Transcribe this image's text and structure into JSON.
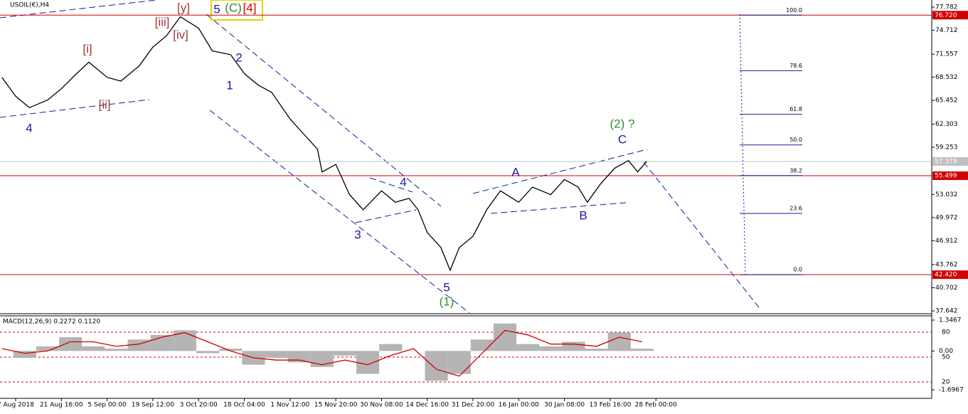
{
  "chart_data": [
    {
      "type": "line",
      "title": "USOIL(€),H4",
      "categories": [
        "7 Aug 2018",
        "21 Aug 16:00",
        "5 Sep 00:00",
        "19 Sep 12:00",
        "3 Oct 20:00",
        "18 Oct 04:00",
        "1 Nov 12:00",
        "15 Nov 20:00",
        "30 Nov 08:00",
        "14 Dec 16:00",
        "31 Dec 20:00",
        "16 Jan 00:00",
        "30 Jan 08:00",
        "13 Feb 16:00",
        "28 Feb 00:00"
      ],
      "series": [
        {
          "name": "USOIL",
          "color": "#000000",
          "x": [
            -0.3,
            0,
            0.3,
            0.7,
            1,
            1.3,
            1.6,
            2,
            2.3,
            2.7,
            3,
            3.3,
            3.6,
            4,
            4.3,
            4.7,
            5,
            5.3,
            5.6,
            6,
            6.3,
            6.6,
            6.7,
            7,
            7.3,
            7.6,
            8,
            8.3,
            8.6,
            8.8,
            9,
            9.3,
            9.5,
            9.7,
            10,
            10.3,
            10.6,
            11,
            11.3,
            11.7,
            12,
            12.3,
            12.5,
            12.8,
            13.1,
            13.4,
            13.6,
            13.8
          ],
          "values": [
            68.5,
            66,
            64.5,
            65.5,
            67,
            68.8,
            70.5,
            68.5,
            68,
            70,
            72.5,
            74,
            76.5,
            75,
            72,
            71.5,
            69,
            67.5,
            66.5,
            63,
            61,
            59,
            56,
            57,
            53,
            51,
            53.5,
            52,
            52.5,
            51,
            48,
            46,
            43,
            46,
            47.5,
            51,
            53.5,
            52,
            54,
            53,
            55,
            54,
            52,
            54.5,
            56.5,
            57.5,
            56,
            57.4
          ]
        }
      ],
      "ylim": [
        37.36,
        78.72
      ],
      "yticks": [
        77.782,
        74.712,
        71.557,
        68.532,
        65.452,
        62.303,
        59.253,
        53.032,
        49.972,
        46.912,
        43.762,
        40.702,
        37.642
      ],
      "levels": [
        {
          "value": 76.72,
          "label": "76.720",
          "color": "#d00000"
        },
        {
          "value": 57.379,
          "label": "57.379",
          "color": "#c0c0c0"
        },
        {
          "value": 55.499,
          "label": "55.499",
          "color": "#d00000"
        },
        {
          "value": 42.42,
          "label": "42.420",
          "color": "#d00000"
        }
      ],
      "fib_levels": [
        {
          "value": 100,
          "label": "100.0"
        },
        {
          "value": 78.6,
          "label": "78.6"
        },
        {
          "value": 61.8,
          "label": "61.8"
        },
        {
          "value": 50,
          "label": "50.0"
        },
        {
          "value": 38.2,
          "label": "38.2"
        },
        {
          "value": 23.6,
          "label": "23.6"
        },
        {
          "value": 0,
          "label": "0.0"
        }
      ],
      "annotations": [
        {
          "text": "[y]",
          "color": "#9b3a3a"
        },
        {
          "text": "5",
          "color": "#1a1a9c"
        },
        {
          "text": "(C)",
          "color": "#2e8b2e"
        },
        {
          "text": "[4]",
          "color": "#d00000"
        },
        {
          "text": "[iii]",
          "color": "#9b3a3a"
        },
        {
          "text": "[iv]",
          "color": "#9b3a3a"
        },
        {
          "text": "[i]",
          "color": "#9b3a3a"
        },
        {
          "text": "[ii]",
          "color": "#9b3a3a"
        },
        {
          "text": "4",
          "color": "#1a1a9c"
        },
        {
          "text": "1",
          "color": "#1a1a9c"
        },
        {
          "text": "2",
          "color": "#1a1a9c"
        },
        {
          "text": "3",
          "color": "#1a1a9c"
        },
        {
          "text": "4",
          "color": "#1a1a9c"
        },
        {
          "text": "5",
          "color": "#1a1a9c"
        },
        {
          "text": "(1)",
          "color": "#2e8b2e"
        },
        {
          "text": "A",
          "color": "#1a1a9c"
        },
        {
          "text": "B",
          "color": "#1a1a9c"
        },
        {
          "text": "C",
          "color": "#1a1a9c"
        },
        {
          "text": "(2) ?",
          "color": "#2e8b2e"
        }
      ]
    },
    {
      "type": "macd",
      "title": "MACD(12,26,9) 0.2272 0.1120",
      "x": [
        -0.3,
        0.2,
        0.7,
        1.2,
        1.7,
        2.2,
        2.7,
        3.2,
        3.7,
        4.2,
        4.7,
        5.2,
        5.7,
        6.2,
        6.7,
        7.2,
        7.7,
        8.2,
        8.7,
        9.2,
        9.7,
        10.2,
        10.7,
        11.2,
        11.7,
        12.2,
        12.7,
        13.2,
        13.7
      ],
      "series": [
        {
          "name": "MACD",
          "color": "#b4b4b4",
          "values": [
            0.0,
            -0.3,
            0.2,
            0.6,
            0.2,
            0.1,
            0.5,
            0.7,
            0.9,
            -0.1,
            0.1,
            -0.6,
            -0.3,
            -0.5,
            -0.7,
            -0.2,
            -1.0,
            0.3,
            0.0,
            -1.3,
            -1.0,
            0.5,
            1.2,
            0.3,
            0.2,
            0.4,
            0.1,
            0.8,
            0.1
          ]
        },
        {
          "name": "Signal",
          "color": "#d00000",
          "values": [
            0.1,
            -0.1,
            0.0,
            0.4,
            0.4,
            0.2,
            0.3,
            0.6,
            0.8,
            0.4,
            0.0,
            -0.3,
            -0.4,
            -0.4,
            -0.6,
            -0.4,
            -0.6,
            -0.2,
            0.1,
            -0.8,
            -1.1,
            -0.1,
            0.9,
            0.7,
            0.3,
            0.3,
            0.2,
            0.6,
            0.4
          ]
        }
      ],
      "ylim": [
        -1.821,
        1.502
      ],
      "yticks": [
        1.3467,
        {
          "value": 0,
          "label": "0.00"
        },
        -1.6967
      ],
      "y2lim": [
        7.1,
        98.9
      ],
      "y2ticks": [
        80,
        50,
        20
      ]
    }
  ]
}
